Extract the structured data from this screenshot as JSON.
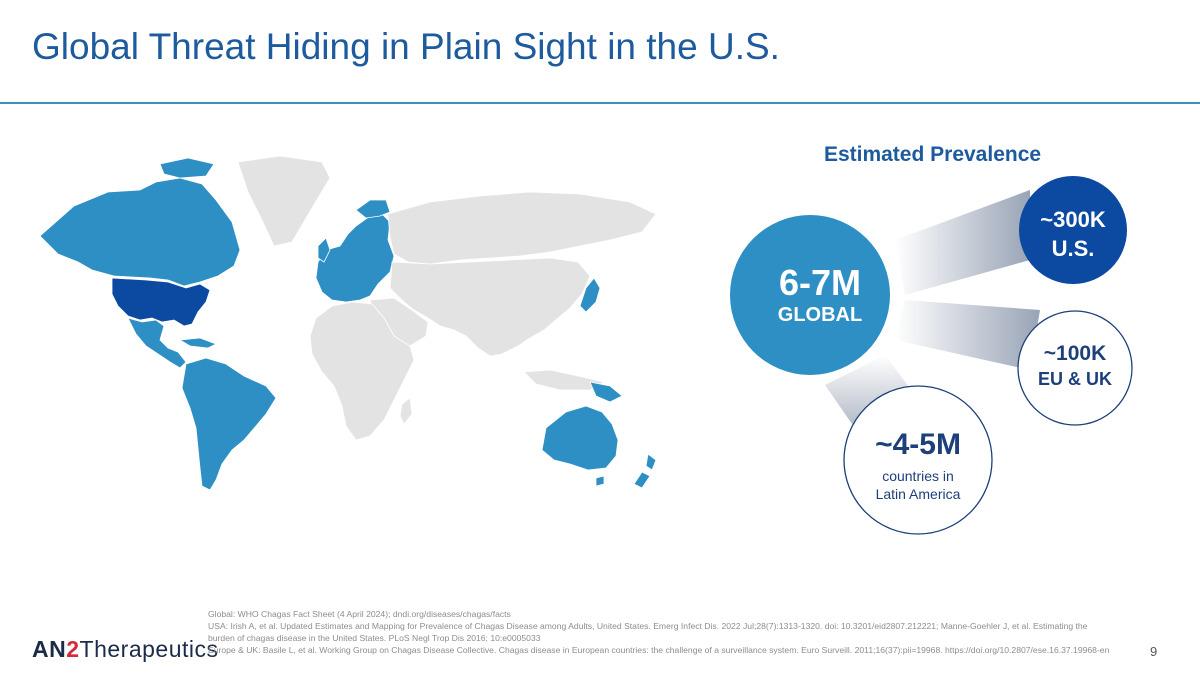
{
  "slide": {
    "title": "Global Threat Hiding in Plain Sight in the U.S.",
    "page_number": "9"
  },
  "colors": {
    "accent_blue": "#1d5a9e",
    "endemic_blue": "#2e8fc4",
    "us_dark_blue": "#0b4aa0",
    "map_grey": "#e3e3e3",
    "circle_outline": "#1d3f7a"
  },
  "map": {
    "highlighted_regions": [
      "Canada",
      "United States",
      "Latin America",
      "Europe",
      "Japan",
      "Australia",
      "New Zealand"
    ],
    "dark_region": "United States"
  },
  "prevalence": {
    "heading": "Estimated Prevalence",
    "global": {
      "value": "6-7M",
      "label": "GLOBAL"
    },
    "us": {
      "value": "~300K",
      "label": "U.S."
    },
    "eu_uk": {
      "value": "~100K",
      "label": "EU & UK"
    },
    "latin_america": {
      "value": "~4-5M",
      "label_line1": "countries in",
      "label_line2": "Latin America"
    }
  },
  "footer": {
    "logo_an": "AN",
    "logo_two": "2",
    "logo_rest": "Therapeutics",
    "references": [
      "Global: WHO Chagas Fact Sheet (4 April 2024); dndi.org/diseases/chagas/facts",
      "USA: Irish A, et al. Updated Estimates and Mapping for Prevalence of Chagas Disease among Adults, United States. Emerg Infect Dis. 2022 Jul;28(7):1313-1320. doi: 10.3201/eid2807.212221; Manne-Goehler  J, et al. Estimating the",
      "burden of chagas disease in the United States. PLoS Negl Trop Dis  2016; 10:e0005033",
      "Europe & UK: Basile L, et al. Working Group on Chagas Disease Collective. Chagas disease in European countries: the challenge of a surveillance system. Euro Surveill. 2011;16(37):pii=19968. https://doi.org/10.2807/ese.16.37.19968-en"
    ]
  }
}
